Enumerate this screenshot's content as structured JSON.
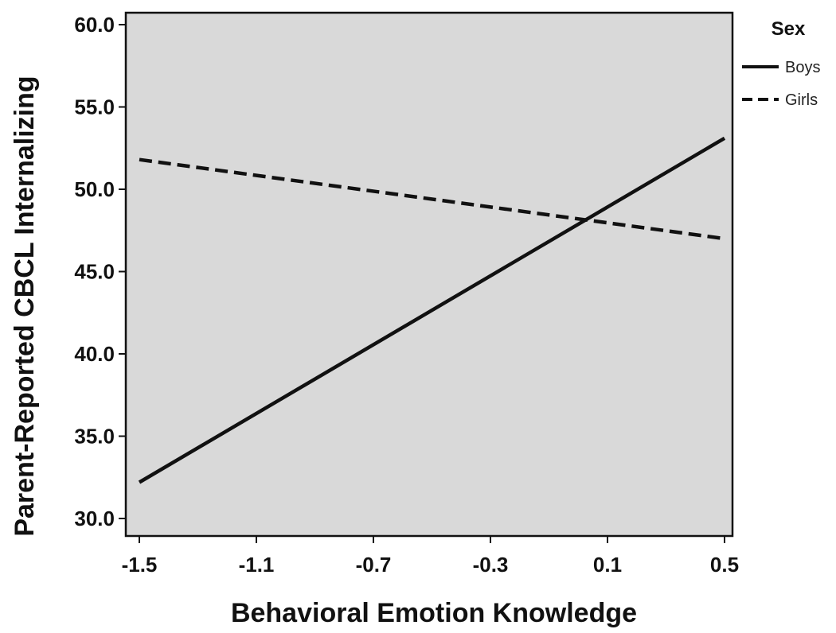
{
  "chart_data": {
    "type": "line",
    "xlabel": "Behavioral Emotion Knowledge",
    "ylabel": "Parent-Reported CBCL Internalizing",
    "x_ticks": [
      "-1.5",
      "-1.1",
      "-0.7",
      "-0.3",
      "0.1",
      "0.5"
    ],
    "y_ticks": [
      "30.0",
      "35.0",
      "40.0",
      "45.0",
      "50.0",
      "55.0",
      "60.0"
    ],
    "xlim": [
      -1.5,
      0.5
    ],
    "ylim": [
      30.0,
      60.0
    ],
    "grid": false,
    "legend": {
      "title": "Sex",
      "placement": "right"
    },
    "series": [
      {
        "name": "Boys",
        "style": "solid",
        "color": "#111111",
        "x": [
          -1.5,
          0.5
        ],
        "y": [
          32.2,
          53.1
        ]
      },
      {
        "name": "Girls",
        "style": "dashed",
        "color": "#111111",
        "x": [
          -1.5,
          0.5
        ],
        "y": [
          51.8,
          47.0
        ]
      }
    ],
    "plot_background": "#d9d9d9"
  }
}
